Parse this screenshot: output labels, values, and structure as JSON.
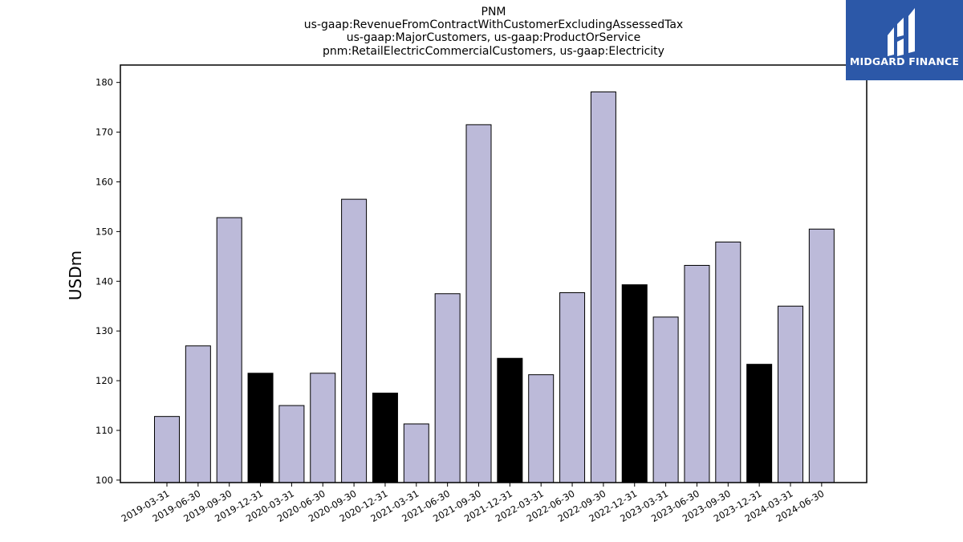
{
  "title_lines": [
    "PNM",
    "us-gaap:RevenueFromContractWithCustomerExcludingAssessedTax",
    "us-gaap:MajorCustomers, us-gaap:ProductOrService",
    "pnm:RetailElectricCommercialCustomers, us-gaap:Electricity"
  ],
  "logo": {
    "text": "MIDGARD FINANCE",
    "background": "#2c58a8"
  },
  "colors": {
    "regular_bar": "#bcbad9",
    "q4_bar": "#000000",
    "edge": "#000000"
  },
  "chart_data": {
    "type": "bar",
    "ylabel": "USDm",
    "xlabel": "",
    "ylim": [
      99.5,
      183.5
    ],
    "yticks": [
      100,
      110,
      120,
      130,
      140,
      150,
      160,
      170,
      180
    ],
    "grid": false,
    "categories": [
      "2019-03-31",
      "2019-06-30",
      "2019-09-30",
      "2019-12-31",
      "2020-03-31",
      "2020-06-30",
      "2020-09-30",
      "2020-12-31",
      "2021-03-31",
      "2021-06-30",
      "2021-09-30",
      "2021-12-31",
      "2022-03-31",
      "2022-06-30",
      "2022-09-30",
      "2022-12-31",
      "2023-03-31",
      "2023-06-30",
      "2023-09-30",
      "2023-12-31",
      "2024-03-31",
      "2024-06-30"
    ],
    "values": [
      112.8,
      127.0,
      152.8,
      121.5,
      115.0,
      121.5,
      156.5,
      117.5,
      111.3,
      137.5,
      171.5,
      124.5,
      121.2,
      137.7,
      178.1,
      139.3,
      132.8,
      143.2,
      147.9,
      123.3,
      135.0,
      150.5
    ],
    "highlight": [
      false,
      false,
      false,
      true,
      false,
      false,
      false,
      true,
      false,
      false,
      false,
      true,
      false,
      false,
      false,
      true,
      false,
      false,
      false,
      true,
      false,
      false
    ]
  }
}
